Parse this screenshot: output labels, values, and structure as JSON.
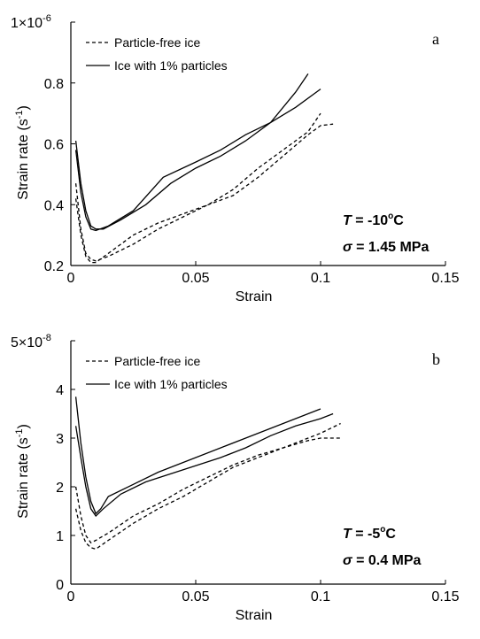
{
  "chart_data": [
    {
      "type": "line",
      "panel_label": "a",
      "xlabel": "Strain",
      "ylabel": "Strain rate (s",
      "ylabel_sup": "-1",
      "ylabel_end": ")",
      "exponent_label": "1×10",
      "exponent_sup": "-6",
      "xlim": [
        0,
        0.15
      ],
      "ylim": [
        0.2,
        1.0
      ],
      "xticks": [
        "0",
        "0.05",
        "0.1",
        "0.15"
      ],
      "yticks": [
        "0.2",
        "0.4",
        "0.6",
        "0.8"
      ],
      "legend": [
        {
          "label": "Particle-free ice",
          "style": "dashed"
        },
        {
          "label": "Ice with 1% particles",
          "style": "solid"
        }
      ],
      "condition": {
        "T_sym": "T",
        "T_val": " = -10",
        "T_unit": "C",
        "sigma_sym": "σ",
        "sigma_val": " = 1.45 MPa"
      },
      "series": [
        {
          "style": "solid",
          "points": [
            [
              0.002,
              0.61
            ],
            [
              0.004,
              0.47
            ],
            [
              0.006,
              0.38
            ],
            [
              0.008,
              0.33
            ],
            [
              0.01,
              0.32
            ],
            [
              0.013,
              0.32
            ],
            [
              0.02,
              0.35
            ],
            [
              0.03,
              0.4
            ],
            [
              0.04,
              0.47
            ],
            [
              0.05,
              0.52
            ],
            [
              0.06,
              0.56
            ],
            [
              0.07,
              0.61
            ],
            [
              0.08,
              0.67
            ],
            [
              0.09,
              0.77
            ],
            [
              0.095,
              0.83
            ]
          ]
        },
        {
          "style": "solid",
          "points": [
            [
              0.002,
              0.58
            ],
            [
              0.004,
              0.44
            ],
            [
              0.006,
              0.36
            ],
            [
              0.008,
              0.32
            ],
            [
              0.01,
              0.315
            ],
            [
              0.015,
              0.33
            ],
            [
              0.025,
              0.38
            ],
            [
              0.037,
              0.49
            ],
            [
              0.05,
              0.54
            ],
            [
              0.06,
              0.58
            ],
            [
              0.07,
              0.63
            ],
            [
              0.08,
              0.67
            ],
            [
              0.09,
              0.72
            ],
            [
              0.1,
              0.78
            ]
          ]
        },
        {
          "style": "dashed",
          "points": [
            [
              0.002,
              0.47
            ],
            [
              0.004,
              0.32
            ],
            [
              0.006,
              0.24
            ],
            [
              0.008,
              0.22
            ],
            [
              0.01,
              0.215
            ],
            [
              0.015,
              0.23
            ],
            [
              0.025,
              0.27
            ],
            [
              0.035,
              0.32
            ],
            [
              0.045,
              0.36
            ],
            [
              0.055,
              0.4
            ],
            [
              0.065,
              0.45
            ],
            [
              0.075,
              0.52
            ],
            [
              0.085,
              0.58
            ],
            [
              0.095,
              0.64
            ],
            [
              0.1,
              0.7
            ]
          ]
        },
        {
          "style": "dashed",
          "points": [
            [
              0.002,
              0.42
            ],
            [
              0.004,
              0.3
            ],
            [
              0.006,
              0.23
            ],
            [
              0.008,
              0.21
            ],
            [
              0.01,
              0.21
            ],
            [
              0.015,
              0.24
            ],
            [
              0.025,
              0.3
            ],
            [
              0.035,
              0.34
            ],
            [
              0.045,
              0.37
            ],
            [
              0.055,
              0.4
            ],
            [
              0.065,
              0.43
            ],
            [
              0.075,
              0.49
            ],
            [
              0.085,
              0.56
            ],
            [
              0.095,
              0.63
            ],
            [
              0.1,
              0.66
            ],
            [
              0.105,
              0.665
            ]
          ]
        }
      ]
    },
    {
      "type": "line",
      "panel_label": "b",
      "xlabel": "Strain",
      "ylabel": "Strain rate (s",
      "ylabel_sup": "-1",
      "ylabel_end": ")",
      "exponent_label": "5×10",
      "exponent_sup": "-8",
      "xlim": [
        0,
        0.15
      ],
      "ylim": [
        0,
        5
      ],
      "xticks": [
        "0",
        "0.05",
        "0.1",
        "0.15"
      ],
      "yticks": [
        "0",
        "1",
        "2",
        "3",
        "4"
      ],
      "legend": [
        {
          "label": "Particle-free ice",
          "style": "dashed"
        },
        {
          "label": "Ice with 1% particles",
          "style": "solid"
        }
      ],
      "condition": {
        "T_sym": "T",
        "T_val": " = -5",
        "T_unit": "C",
        "sigma_sym": "σ",
        "sigma_val": " = 0.4 MPa"
      },
      "series": [
        {
          "style": "solid",
          "points": [
            [
              0.002,
              3.85
            ],
            [
              0.004,
              2.9
            ],
            [
              0.006,
              2.2
            ],
            [
              0.008,
              1.7
            ],
            [
              0.01,
              1.45
            ],
            [
              0.012,
              1.55
            ],
            [
              0.015,
              1.8
            ],
            [
              0.025,
              2.05
            ],
            [
              0.035,
              2.3
            ],
            [
              0.05,
              2.6
            ],
            [
              0.06,
              2.8
            ],
            [
              0.07,
              3.0
            ],
            [
              0.08,
              3.2
            ],
            [
              0.09,
              3.4
            ],
            [
              0.1,
              3.6
            ]
          ]
        },
        {
          "style": "solid",
          "points": [
            [
              0.002,
              3.25
            ],
            [
              0.004,
              2.6
            ],
            [
              0.006,
              2.0
            ],
            [
              0.008,
              1.55
            ],
            [
              0.01,
              1.4
            ],
            [
              0.013,
              1.55
            ],
            [
              0.02,
              1.85
            ],
            [
              0.03,
              2.1
            ],
            [
              0.045,
              2.35
            ],
            [
              0.06,
              2.6
            ],
            [
              0.07,
              2.8
            ],
            [
              0.08,
              3.05
            ],
            [
              0.09,
              3.25
            ],
            [
              0.1,
              3.4
            ],
            [
              0.105,
              3.5
            ]
          ]
        },
        {
          "style": "dashed",
          "points": [
            [
              0.002,
              2.0
            ],
            [
              0.004,
              1.4
            ],
            [
              0.006,
              1.0
            ],
            [
              0.008,
              0.85
            ],
            [
              0.01,
              0.9
            ],
            [
              0.015,
              1.05
            ],
            [
              0.025,
              1.4
            ],
            [
              0.035,
              1.65
            ],
            [
              0.045,
              1.95
            ],
            [
              0.055,
              2.2
            ],
            [
              0.065,
              2.45
            ],
            [
              0.075,
              2.65
            ],
            [
              0.085,
              2.8
            ],
            [
              0.095,
              2.95
            ],
            [
              0.1,
              3.0
            ],
            [
              0.108,
              3.0
            ]
          ]
        },
        {
          "style": "dashed",
          "points": [
            [
              0.002,
              1.55
            ],
            [
              0.004,
              1.1
            ],
            [
              0.006,
              0.85
            ],
            [
              0.008,
              0.75
            ],
            [
              0.01,
              0.72
            ],
            [
              0.015,
              0.9
            ],
            [
              0.025,
              1.25
            ],
            [
              0.035,
              1.55
            ],
            [
              0.045,
              1.8
            ],
            [
              0.055,
              2.1
            ],
            [
              0.065,
              2.4
            ],
            [
              0.075,
              2.6
            ],
            [
              0.085,
              2.8
            ],
            [
              0.095,
              3.0
            ],
            [
              0.1,
              3.1
            ],
            [
              0.108,
              3.3
            ]
          ]
        }
      ]
    }
  ]
}
